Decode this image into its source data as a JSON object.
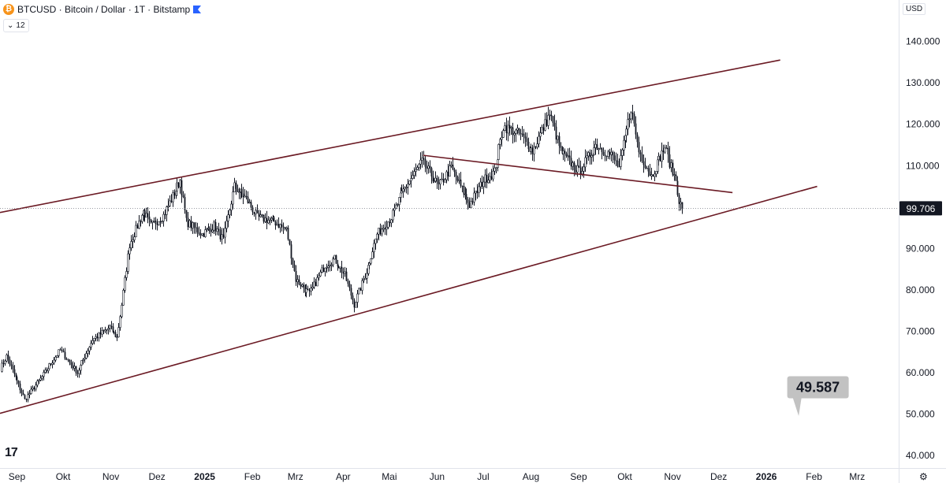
{
  "header": {
    "symbol_line": "BTCUSD · Bitcoin / Dollar · 1T · Bitstamp",
    "logo_glyph": "₿",
    "flag_icon": "blue-flag-icon"
  },
  "indicator_pill": {
    "chevron": "⌄",
    "value": "12"
  },
  "currency_label": "USD",
  "colors": {
    "bull": "#131722",
    "trendline": "#6b1a24",
    "last_price_bg": "#131722",
    "callout_bg": "#c2c2c2"
  },
  "chart_data": {
    "type": "candlestick",
    "title": "",
    "xlabel": "",
    "ylabel": "",
    "ylim": [
      37000,
      150000
    ],
    "yticks": [
      40000,
      50000,
      60000,
      70000,
      80000,
      90000,
      100000,
      110000,
      120000,
      130000,
      140000
    ],
    "ytick_labels": [
      "40.000",
      "50.000",
      "60.000",
      "70.000",
      "80.000",
      "90.000",
      "100.000",
      "110.000",
      "120.000",
      "130.000",
      "140.000"
    ],
    "xlim": [
      "2024-08-21",
      "2026-03-28"
    ],
    "xticks": [
      {
        "date": "2024-09-01",
        "label": "Sep"
      },
      {
        "date": "2024-10-01",
        "label": "Okt"
      },
      {
        "date": "2024-11-01",
        "label": "Nov"
      },
      {
        "date": "2024-12-01",
        "label": "Dez"
      },
      {
        "date": "2025-01-01",
        "label": "2025"
      },
      {
        "date": "2025-02-01",
        "label": "Feb"
      },
      {
        "date": "2025-03-01",
        "label": "Mrz"
      },
      {
        "date": "2025-04-01",
        "label": "Apr"
      },
      {
        "date": "2025-05-01",
        "label": "Mai"
      },
      {
        "date": "2025-06-01",
        "label": "Jun"
      },
      {
        "date": "2025-07-01",
        "label": "Jul"
      },
      {
        "date": "2025-08-01",
        "label": "Aug"
      },
      {
        "date": "2025-09-01",
        "label": "Sep"
      },
      {
        "date": "2025-10-01",
        "label": "Okt"
      },
      {
        "date": "2025-11-01",
        "label": "Nov"
      },
      {
        "date": "2025-12-01",
        "label": "Dez"
      },
      {
        "date": "2026-01-01",
        "label": "2026"
      },
      {
        "date": "2026-02-01",
        "label": "Feb"
      },
      {
        "date": "2026-03-01",
        "label": "Mrz"
      }
    ],
    "price_path": [
      [
        "2024-08-21",
        61000
      ],
      [
        "2024-08-25",
        64000
      ],
      [
        "2024-09-06",
        53500
      ],
      [
        "2024-09-16",
        58500
      ],
      [
        "2024-09-29",
        65500
      ],
      [
        "2024-10-10",
        60000
      ],
      [
        "2024-10-20",
        68000
      ],
      [
        "2024-10-31",
        71000
      ],
      [
        "2024-11-05",
        68500
      ],
      [
        "2024-11-08",
        76500
      ],
      [
        "2024-11-13",
        91000
      ],
      [
        "2024-11-22",
        99000
      ],
      [
        "2024-11-27",
        95500
      ],
      [
        "2024-12-05",
        98000
      ],
      [
        "2024-12-16",
        106500
      ],
      [
        "2024-12-20",
        96500
      ],
      [
        "2024-12-30",
        93500
      ],
      [
        "2025-01-07",
        95500
      ],
      [
        "2025-01-13",
        92000
      ],
      [
        "2025-01-20",
        105000
      ],
      [
        "2025-01-28",
        102000
      ],
      [
        "2025-02-04",
        97500
      ],
      [
        "2025-02-15",
        96500
      ],
      [
        "2025-02-23",
        94500
      ],
      [
        "2025-03-01",
        82500
      ],
      [
        "2025-03-10",
        79000
      ],
      [
        "2025-03-20",
        86000
      ],
      [
        "2025-03-26",
        87500
      ],
      [
        "2025-04-02",
        83500
      ],
      [
        "2025-04-08",
        76500
      ],
      [
        "2025-04-16",
        84500
      ],
      [
        "2025-04-23",
        93500
      ],
      [
        "2025-05-02",
        97500
      ],
      [
        "2025-05-10",
        104000
      ],
      [
        "2025-05-22",
        111000
      ],
      [
        "2025-06-02",
        105000
      ],
      [
        "2025-06-10",
        109500
      ],
      [
        "2025-06-22",
        100500
      ],
      [
        "2025-07-01",
        106500
      ],
      [
        "2025-07-08",
        108500
      ],
      [
        "2025-07-14",
        119500
      ],
      [
        "2025-07-25",
        117500
      ],
      [
        "2025-08-02",
        113500
      ],
      [
        "2025-08-13",
        122500
      ],
      [
        "2025-08-20",
        113500
      ],
      [
        "2025-09-01",
        108500
      ],
      [
        "2025-09-12",
        115000
      ],
      [
        "2025-09-22",
        112500
      ],
      [
        "2025-09-27",
        109500
      ],
      [
        "2025-10-05",
        124000
      ],
      [
        "2025-10-10",
        113500
      ],
      [
        "2025-10-18",
        107500
      ],
      [
        "2025-10-27",
        114500
      ],
      [
        "2025-10-31",
        109500
      ],
      [
        "2025-11-03",
        106500
      ],
      [
        "2025-11-05",
        101500
      ],
      [
        "2025-11-07",
        99706
      ]
    ],
    "last_price": {
      "date": "2025-11-07",
      "value": 99706,
      "label": "99.706"
    },
    "trendlines": [
      {
        "name": "upper-channel",
        "from": [
          "2024-08-21",
          98700
        ],
        "to": [
          "2026-01-10",
          135500
        ]
      },
      {
        "name": "lower-channel",
        "from": [
          "2024-08-21",
          50200
        ],
        "to": [
          "2026-02-03",
          105000
        ]
      },
      {
        "name": "descending-resistance",
        "from": [
          "2025-05-23",
          112500
        ],
        "to": [
          "2025-12-10",
          103500
        ]
      }
    ],
    "callout": {
      "label": "49.587",
      "anchor": [
        "2026-01-22",
        49587
      ],
      "box_at": [
        "2026-02-02",
        56500
      ]
    }
  }
}
